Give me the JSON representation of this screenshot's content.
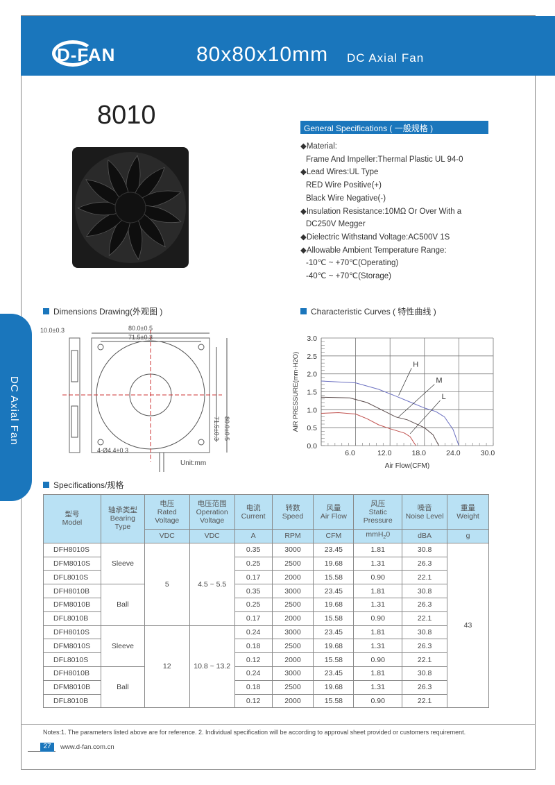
{
  "header": {
    "logo": "D-FAN",
    "title": "80x80x10mm",
    "subtitle": "DC Axial Fan"
  },
  "model": "8010",
  "side_tab": "DC Axial Fan",
  "general": {
    "heading": "General Specifications ( 一般规格 )",
    "lines": [
      "◆Material:",
      " Frame And Impeller:Thermal Plastic UL 94-0",
      "◆Lead Wires:UL Type",
      " RED Wire Positive(+)",
      " Black Wire Negative(-)",
      "◆Insulation Resistance:10MΩ  Or Over With a",
      "  DC250V Megger",
      "◆Dielectric Withstand Voltage:AC500V 1S",
      "◆Allowable Ambient Temperature Range:",
      " -10℃ ~ +70℃(Operating)",
      " -40℃ ~ +70℃(Storage)"
    ]
  },
  "dimensions": {
    "heading": "Dimensions Drawing(外观图 )",
    "thickness": "10.0±0.3",
    "width": "80.0±0.5",
    "hole_spacing": "71.5±0.3",
    "height_inner": "71.5±0.3",
    "height_outer": "80.0±0.5",
    "holes": "4-Ø4.4±0.3",
    "unit": "Unit:mm"
  },
  "curves": {
    "heading": "Characteristic Curves ( 特性曲线 )"
  },
  "chart_data": {
    "type": "line",
    "xlabel": "Air Flow(CFM)",
    "ylabel": "AIR PRESSURE(mm-H2O)",
    "xlim": [
      0,
      30
    ],
    "ylim": [
      0,
      3.0
    ],
    "xticks": [
      "6.0",
      "12.0",
      "18.0",
      "24.0",
      "30.0"
    ],
    "yticks": [
      "0.0",
      "0.5",
      "1.0",
      "1.5",
      "2.0",
      "2.5",
      "3.0"
    ],
    "grid": true,
    "series": [
      {
        "name": "H",
        "color": "#6a6fc0",
        "points": [
          [
            0,
            1.8
          ],
          [
            6,
            1.75
          ],
          [
            10,
            1.57
          ],
          [
            13,
            1.38
          ],
          [
            16,
            1.18
          ],
          [
            18,
            1.05
          ],
          [
            20,
            0.95
          ],
          [
            21.5,
            0.8
          ],
          [
            23,
            0.45
          ],
          [
            24,
            0
          ]
        ]
      },
      {
        "name": "M",
        "color": "#5a4a4a",
        "points": [
          [
            0,
            1.35
          ],
          [
            5,
            1.33
          ],
          [
            8,
            1.2
          ],
          [
            10.5,
            1.0
          ],
          [
            13,
            0.8
          ],
          [
            15,
            0.72
          ],
          [
            18,
            0.5
          ],
          [
            19.5,
            0.3
          ],
          [
            20.5,
            0
          ]
        ]
      },
      {
        "name": "L",
        "color": "#c0504d",
        "points": [
          [
            0,
            0.9
          ],
          [
            3,
            0.92
          ],
          [
            6,
            0.88
          ],
          [
            8,
            0.75
          ],
          [
            10,
            0.58
          ],
          [
            12,
            0.47
          ],
          [
            14.5,
            0.35
          ],
          [
            15.5,
            0.25
          ],
          [
            16.5,
            0
          ]
        ]
      }
    ]
  },
  "specs": {
    "heading": "Specifications/规格",
    "headers": [
      [
        "型号",
        "Model"
      ],
      [
        "轴承类型",
        "Bearing",
        "Type"
      ],
      [
        "电压",
        "Rated",
        "Voltage"
      ],
      [
        "电压范围",
        "Operation",
        "Voltage"
      ],
      [
        "电流",
        "Current"
      ],
      [
        "转数",
        "Speed"
      ],
      [
        "风量",
        "Air Flow"
      ],
      [
        "风压",
        "Static",
        "Pressure"
      ],
      [
        "噪音",
        "Noise Level"
      ],
      [
        "重量",
        "Weight"
      ]
    ],
    "units": [
      "VDC",
      "VDC",
      "A",
      "RPM",
      "CFM",
      "mmH2O",
      "dBA",
      "g"
    ],
    "groups": [
      {
        "voltage": "5",
        "range": "4.5 ~ 5.5"
      },
      {
        "voltage": "12",
        "range": "10.8 ~ 13.2"
      }
    ],
    "bearings": [
      "Sleeve",
      "Ball",
      "Sleeve",
      "Ball"
    ],
    "weight": "43",
    "rows": [
      [
        "DFH8010S",
        "0.35",
        "3000",
        "23.45",
        "1.81",
        "30.8"
      ],
      [
        "DFM8010S",
        "0.25",
        "2500",
        "19.68",
        "1.31",
        "26.3"
      ],
      [
        "DFL8010S",
        "0.17",
        "2000",
        "15.58",
        "0.90",
        "22.1"
      ],
      [
        "DFH8010B",
        "0.35",
        "3000",
        "23.45",
        "1.81",
        "30.8"
      ],
      [
        "DFM8010B",
        "0.25",
        "2500",
        "19.68",
        "1.31",
        "26.3"
      ],
      [
        "DFL8010B",
        "0.17",
        "2000",
        "15.58",
        "0.90",
        "22.1"
      ],
      [
        "DFH8010S",
        "0.24",
        "3000",
        "23.45",
        "1.81",
        "30.8"
      ],
      [
        "DFM8010S",
        "0.18",
        "2500",
        "19.68",
        "1.31",
        "26.3"
      ],
      [
        "DFL8010S",
        "0.12",
        "2000",
        "15.58",
        "0.90",
        "22.1"
      ],
      [
        "DFH8010B",
        "0.24",
        "3000",
        "23.45",
        "1.81",
        "30.8"
      ],
      [
        "DFM8010B",
        "0.18",
        "2500",
        "19.68",
        "1.31",
        "26.3"
      ],
      [
        "DFL8010B",
        "0.12",
        "2000",
        "15.58",
        "0.90",
        "22.1"
      ]
    ]
  },
  "footer": {
    "notes": "Notes:1. The parameters listed above are for reference.    2. Individual specification will be according to approval sheet provided or customers requirement.",
    "page": "27",
    "url": "www.d-fan.com.cn"
  }
}
